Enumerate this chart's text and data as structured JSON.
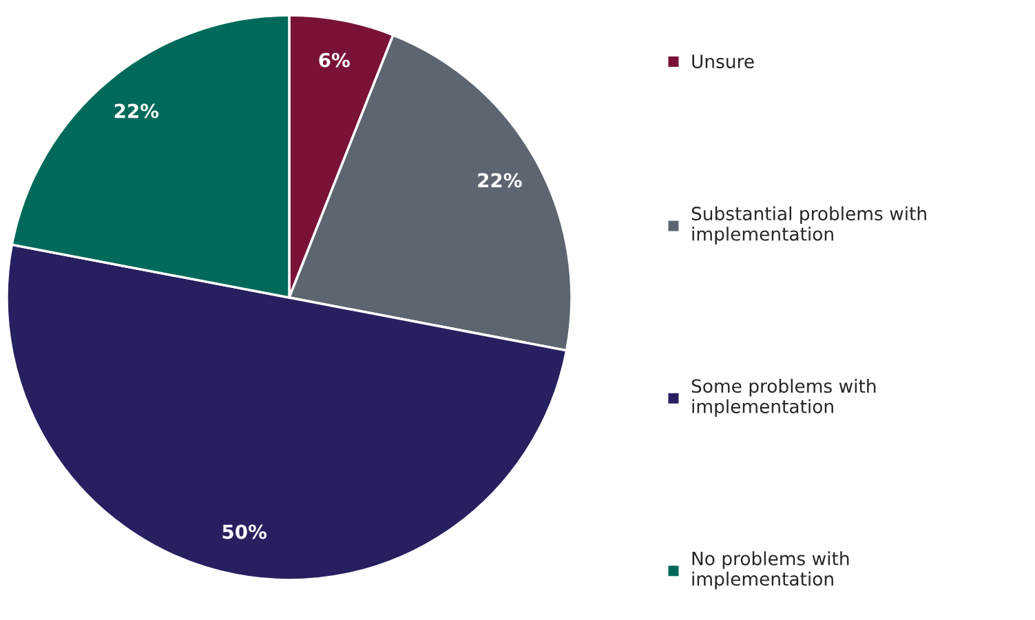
{
  "chart_data": {
    "type": "pie",
    "categories": [
      "Unsure",
      "Substantial problems with\nimplementation",
      "Some problems with\nimplementation",
      "No problems with\nimplementation"
    ],
    "values": [
      6,
      22,
      50,
      22
    ],
    "colors": [
      "#7a1238",
      "#5d6670",
      "#272060",
      "#006a5a"
    ],
    "value_labels": [
      "6%",
      "22%",
      "50%",
      "22%"
    ],
    "legend": "right"
  }
}
